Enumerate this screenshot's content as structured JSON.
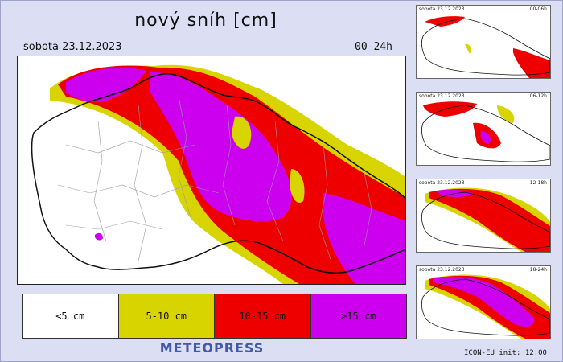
{
  "title": "nový sníh [cm]",
  "date": "sobota 23.12.2023",
  "period": "00-24h",
  "legend": [
    {
      "label": "<5 cm",
      "color": "#ffffff"
    },
    {
      "label": "5-10 cm",
      "color": "#d8d400"
    },
    {
      "label": "10-15 cm",
      "color": "#ee0000"
    },
    {
      "label": ">15 cm",
      "color": "#cc00ee"
    }
  ],
  "brand": "METEOPRESS",
  "thumbnails": [
    {
      "date": "sobota 23.12.2023",
      "period": "00-06h"
    },
    {
      "date": "sobota 23.12.2023",
      "period": "06-12h"
    },
    {
      "date": "sobota 23.12.2023",
      "period": "12-18h"
    },
    {
      "date": "sobota 23.12.2023",
      "period": "18-24h"
    }
  ],
  "model_info": "ICON-EU  init: 12:00"
}
